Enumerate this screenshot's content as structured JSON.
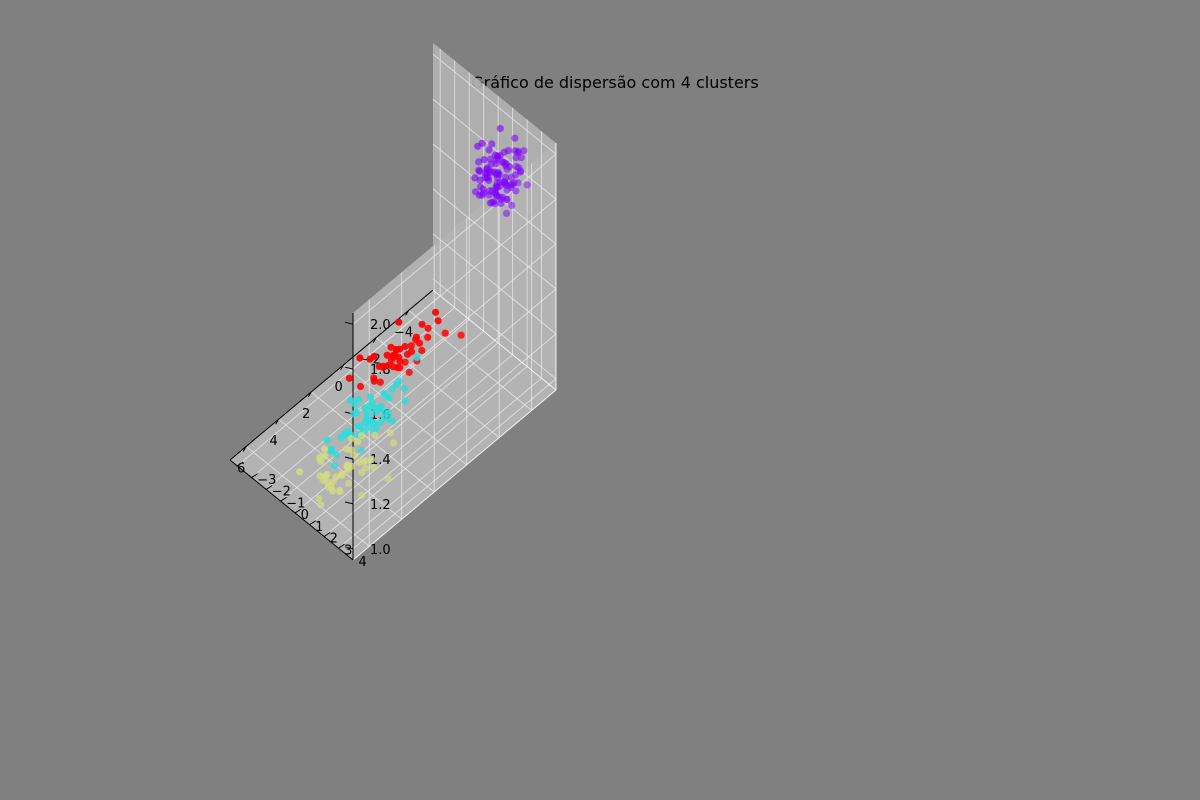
{
  "chart_data": {
    "type": "scatter",
    "projection": "3d",
    "title": "Gráfico de dispersão com 4 clusters",
    "xlabel": "",
    "ylabel": "",
    "zlabel": "",
    "grid": true,
    "legend": "none",
    "background_color": "#808080",
    "pane_color": "#b3b3b3",
    "xlim": [
      -5.5,
      7
    ],
    "ylim": [
      -3.5,
      5
    ],
    "zlim": [
      0.95,
      2.05
    ],
    "x_ticks": [
      "−4",
      "−2",
      "0",
      "2",
      "4",
      "6"
    ],
    "x_tick_values": [
      -4,
      -2,
      0,
      2,
      4,
      6
    ],
    "y_ticks": [
      "−3",
      "−2",
      "−1",
      "0",
      "1",
      "2",
      "3",
      "4"
    ],
    "y_tick_values": [
      -3,
      -2,
      -1,
      0,
      1,
      2,
      3,
      4
    ],
    "z_ticks": [
      "1.0",
      "1.2",
      "1.4",
      "1.6",
      "1.8",
      "2.0"
    ],
    "z_tick_values": [
      1.0,
      1.2,
      1.4,
      1.6,
      1.8,
      2.0
    ],
    "series": [
      {
        "color": "#8000ff",
        "center": [
          -3.0,
          3.9,
          2.0
        ],
        "spread": [
          0.6,
          0.6,
          0.06
        ],
        "count": 100
      },
      {
        "color": "#ff0000",
        "center": [
          -1.5,
          -1.5,
          1.0
        ],
        "spread": [
          1.3,
          0.6,
          0.0
        ],
        "count": 45
      },
      {
        "color": "#2adddd",
        "center": [
          2.0,
          0.0,
          1.0
        ],
        "spread": [
          1.2,
          0.5,
          0.0
        ],
        "count": 55
      },
      {
        "color": "#d4dd80",
        "center": [
          4.0,
          1.5,
          1.0
        ],
        "spread": [
          1.2,
          0.8,
          0.0
        ],
        "count": 45
      }
    ]
  }
}
